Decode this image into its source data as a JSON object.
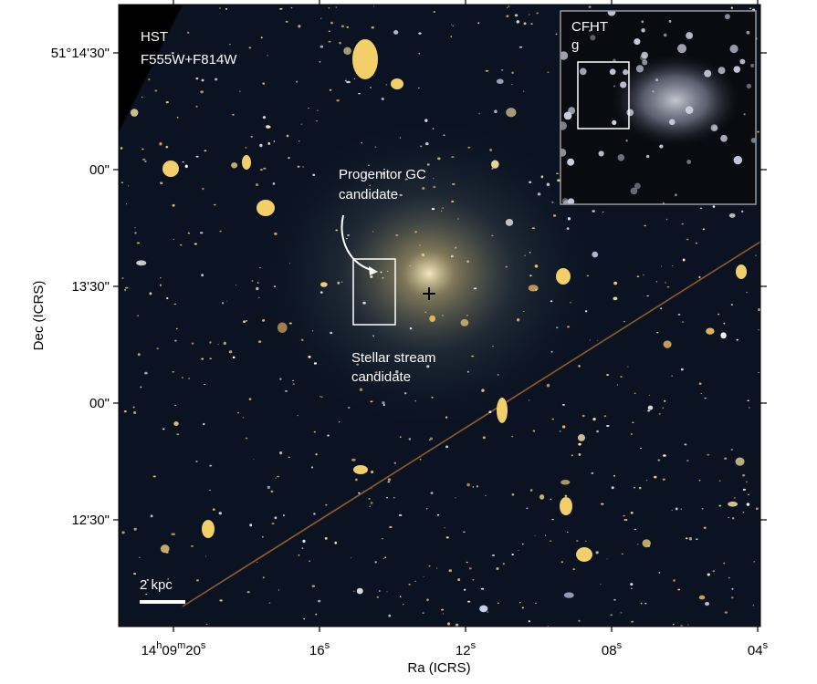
{
  "figure": {
    "telescope": "HST",
    "filters": "F555W+F814W",
    "annotations": {
      "progenitor": [
        "Progenitor GC",
        "candidate"
      ],
      "stream": [
        "Stellar stream",
        "candidate"
      ]
    },
    "inset": {
      "telescope": "CFHT",
      "band": "g"
    },
    "scale_bar": "2 kpc",
    "x_label": "Ra (ICRS)",
    "y_label": "Dec (ICRS)",
    "x_ticks": [
      [
        "14",
        "h",
        "09",
        "m",
        "20",
        "s"
      ],
      [
        "16",
        "s"
      ],
      [
        "12",
        "s"
      ],
      [
        "08",
        "s"
      ],
      [
        "04",
        "s"
      ]
    ],
    "y_ticks": [
      "51°14'30\"",
      "00\"",
      "13'30\"",
      "00\"",
      "12'30\""
    ]
  }
}
